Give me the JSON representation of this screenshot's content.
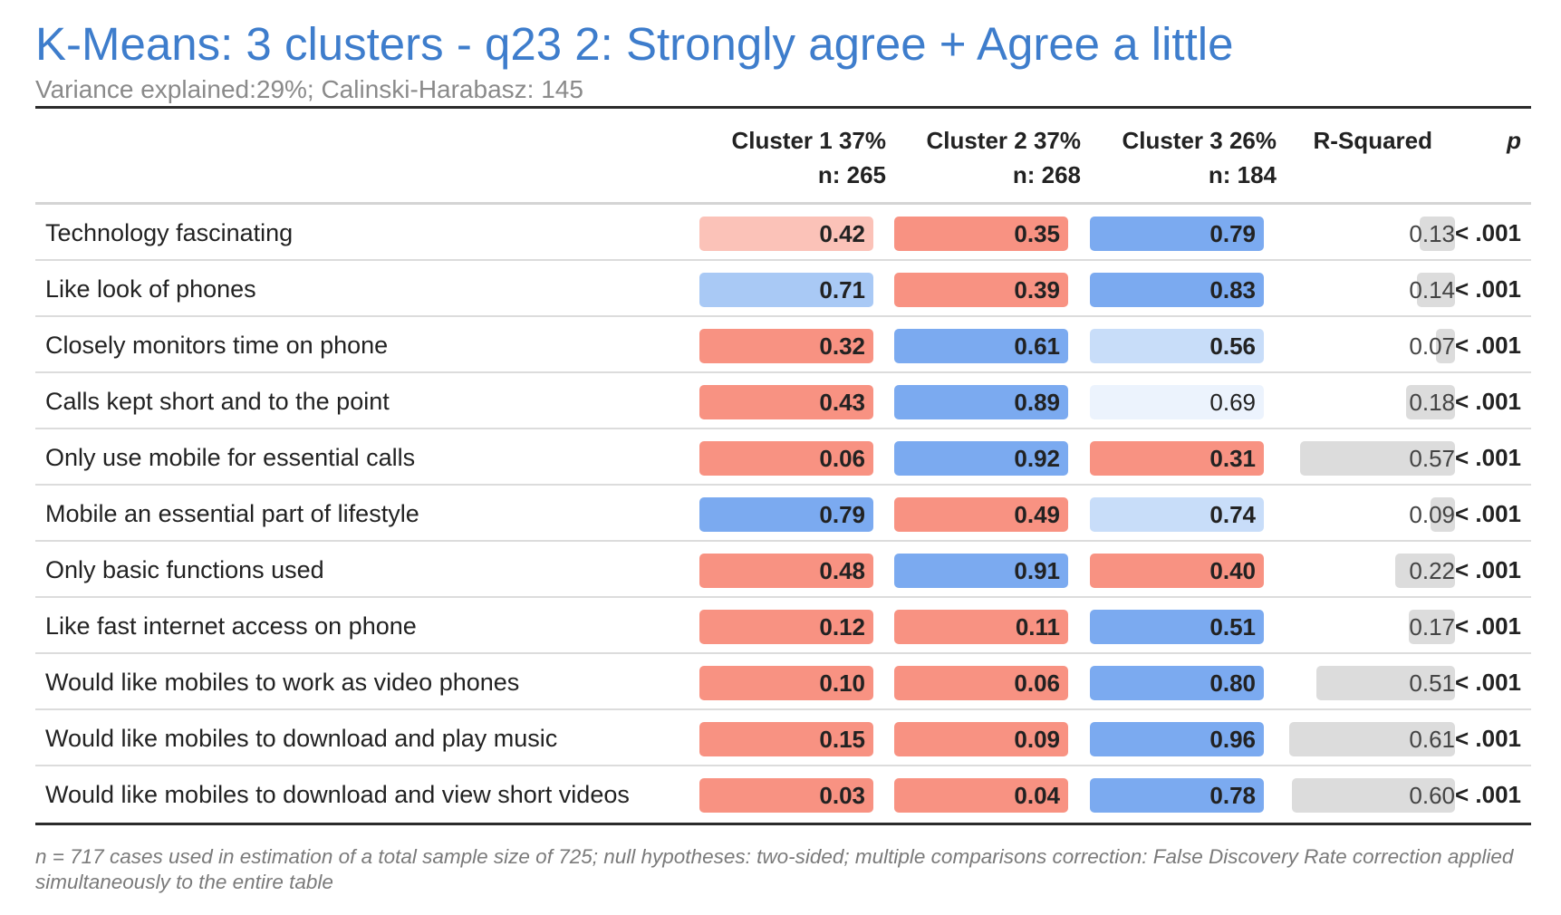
{
  "title": "K-Means: 3 clusters - q23 2: Strongly agree + Agree a little",
  "subtitle": "Variance explained:29%; Calinski-Harabasz: 145",
  "footnote": "n = 717 cases used in estimation of a total sample size of 725; null hypotheses: two-sided; multiple comparisons correction: False Discovery Rate correction applied simultaneously to the entire table",
  "colors": {
    "title": "#3E7DCC",
    "blue_strong": "#7BAAF0",
    "blue_medium": "#A9C9F5",
    "blue_light": "#C8DDF9",
    "blue_faint": "#ECF3FD",
    "red_strong": "#F89282",
    "red_light": "#FBC2B8",
    "rsq_bar": "#DCDCDC"
  },
  "chart_data": {
    "type": "table",
    "title": "K-Means: 3 clusters - q23 2: Strongly agree + Agree a little",
    "subtitle": "Variance explained:29%; Calinski-Harabasz: 145",
    "columns": [
      {
        "line1": "Cluster 1 37%",
        "line2": "n: 265"
      },
      {
        "line1": "Cluster 2 37%",
        "line2": "n: 268"
      },
      {
        "line1": "Cluster 3 26%",
        "line2": "n: 184"
      },
      {
        "line1": "",
        "line2": "R-Squared"
      },
      {
        "line1": "",
        "line2": "p"
      }
    ],
    "rows": [
      {
        "label": "Technology fascinating",
        "values": [
          "0.42",
          "0.35",
          "0.79"
        ],
        "shade": [
          "red_light",
          "red_strong",
          "blue_strong"
        ],
        "r_squared": "0.13",
        "p": "< .001"
      },
      {
        "label": "Like look of phones",
        "values": [
          "0.71",
          "0.39",
          "0.83"
        ],
        "shade": [
          "blue_medium",
          "red_strong",
          "blue_strong"
        ],
        "r_squared": "0.14",
        "p": "< .001"
      },
      {
        "label": "Closely monitors time on phone",
        "values": [
          "0.32",
          "0.61",
          "0.56"
        ],
        "shade": [
          "red_strong",
          "blue_strong",
          "blue_light"
        ],
        "r_squared": "0.07",
        "p": "< .001"
      },
      {
        "label": "Calls kept short and to the point",
        "values": [
          "0.43",
          "0.89",
          "0.69"
        ],
        "shade": [
          "red_strong",
          "blue_strong",
          "blue_faint"
        ],
        "r_squared": "0.18",
        "p": "< .001"
      },
      {
        "label": "Only use mobile for essential calls",
        "values": [
          "0.06",
          "0.92",
          "0.31"
        ],
        "shade": [
          "red_strong",
          "blue_strong",
          "red_strong"
        ],
        "r_squared": "0.57",
        "p": "< .001"
      },
      {
        "label": "Mobile an essential part of lifestyle",
        "values": [
          "0.79",
          "0.49",
          "0.74"
        ],
        "shade": [
          "blue_strong",
          "red_strong",
          "blue_light"
        ],
        "r_squared": "0.09",
        "p": "< .001"
      },
      {
        "label": "Only basic functions used",
        "values": [
          "0.48",
          "0.91",
          "0.40"
        ],
        "shade": [
          "red_strong",
          "blue_strong",
          "red_strong"
        ],
        "r_squared": "0.22",
        "p": "< .001"
      },
      {
        "label": "Like fast internet access on phone",
        "values": [
          "0.12",
          "0.11",
          "0.51"
        ],
        "shade": [
          "red_strong",
          "red_strong",
          "blue_strong"
        ],
        "r_squared": "0.17",
        "p": "< .001"
      },
      {
        "label": "Would like mobiles to work as video phones",
        "values": [
          "0.10",
          "0.06",
          "0.80"
        ],
        "shade": [
          "red_strong",
          "red_strong",
          "blue_strong"
        ],
        "r_squared": "0.51",
        "p": "< .001"
      },
      {
        "label": "Would like mobiles to download and play music",
        "values": [
          "0.15",
          "0.09",
          "0.96"
        ],
        "shade": [
          "red_strong",
          "red_strong",
          "blue_strong"
        ],
        "r_squared": "0.61",
        "p": "< .001"
      },
      {
        "label": "Would like mobiles to download and view short videos",
        "values": [
          "0.03",
          "0.04",
          "0.78"
        ],
        "shade": [
          "red_strong",
          "red_strong",
          "blue_strong"
        ],
        "r_squared": "0.60",
        "p": "< .001"
      }
    ]
  }
}
